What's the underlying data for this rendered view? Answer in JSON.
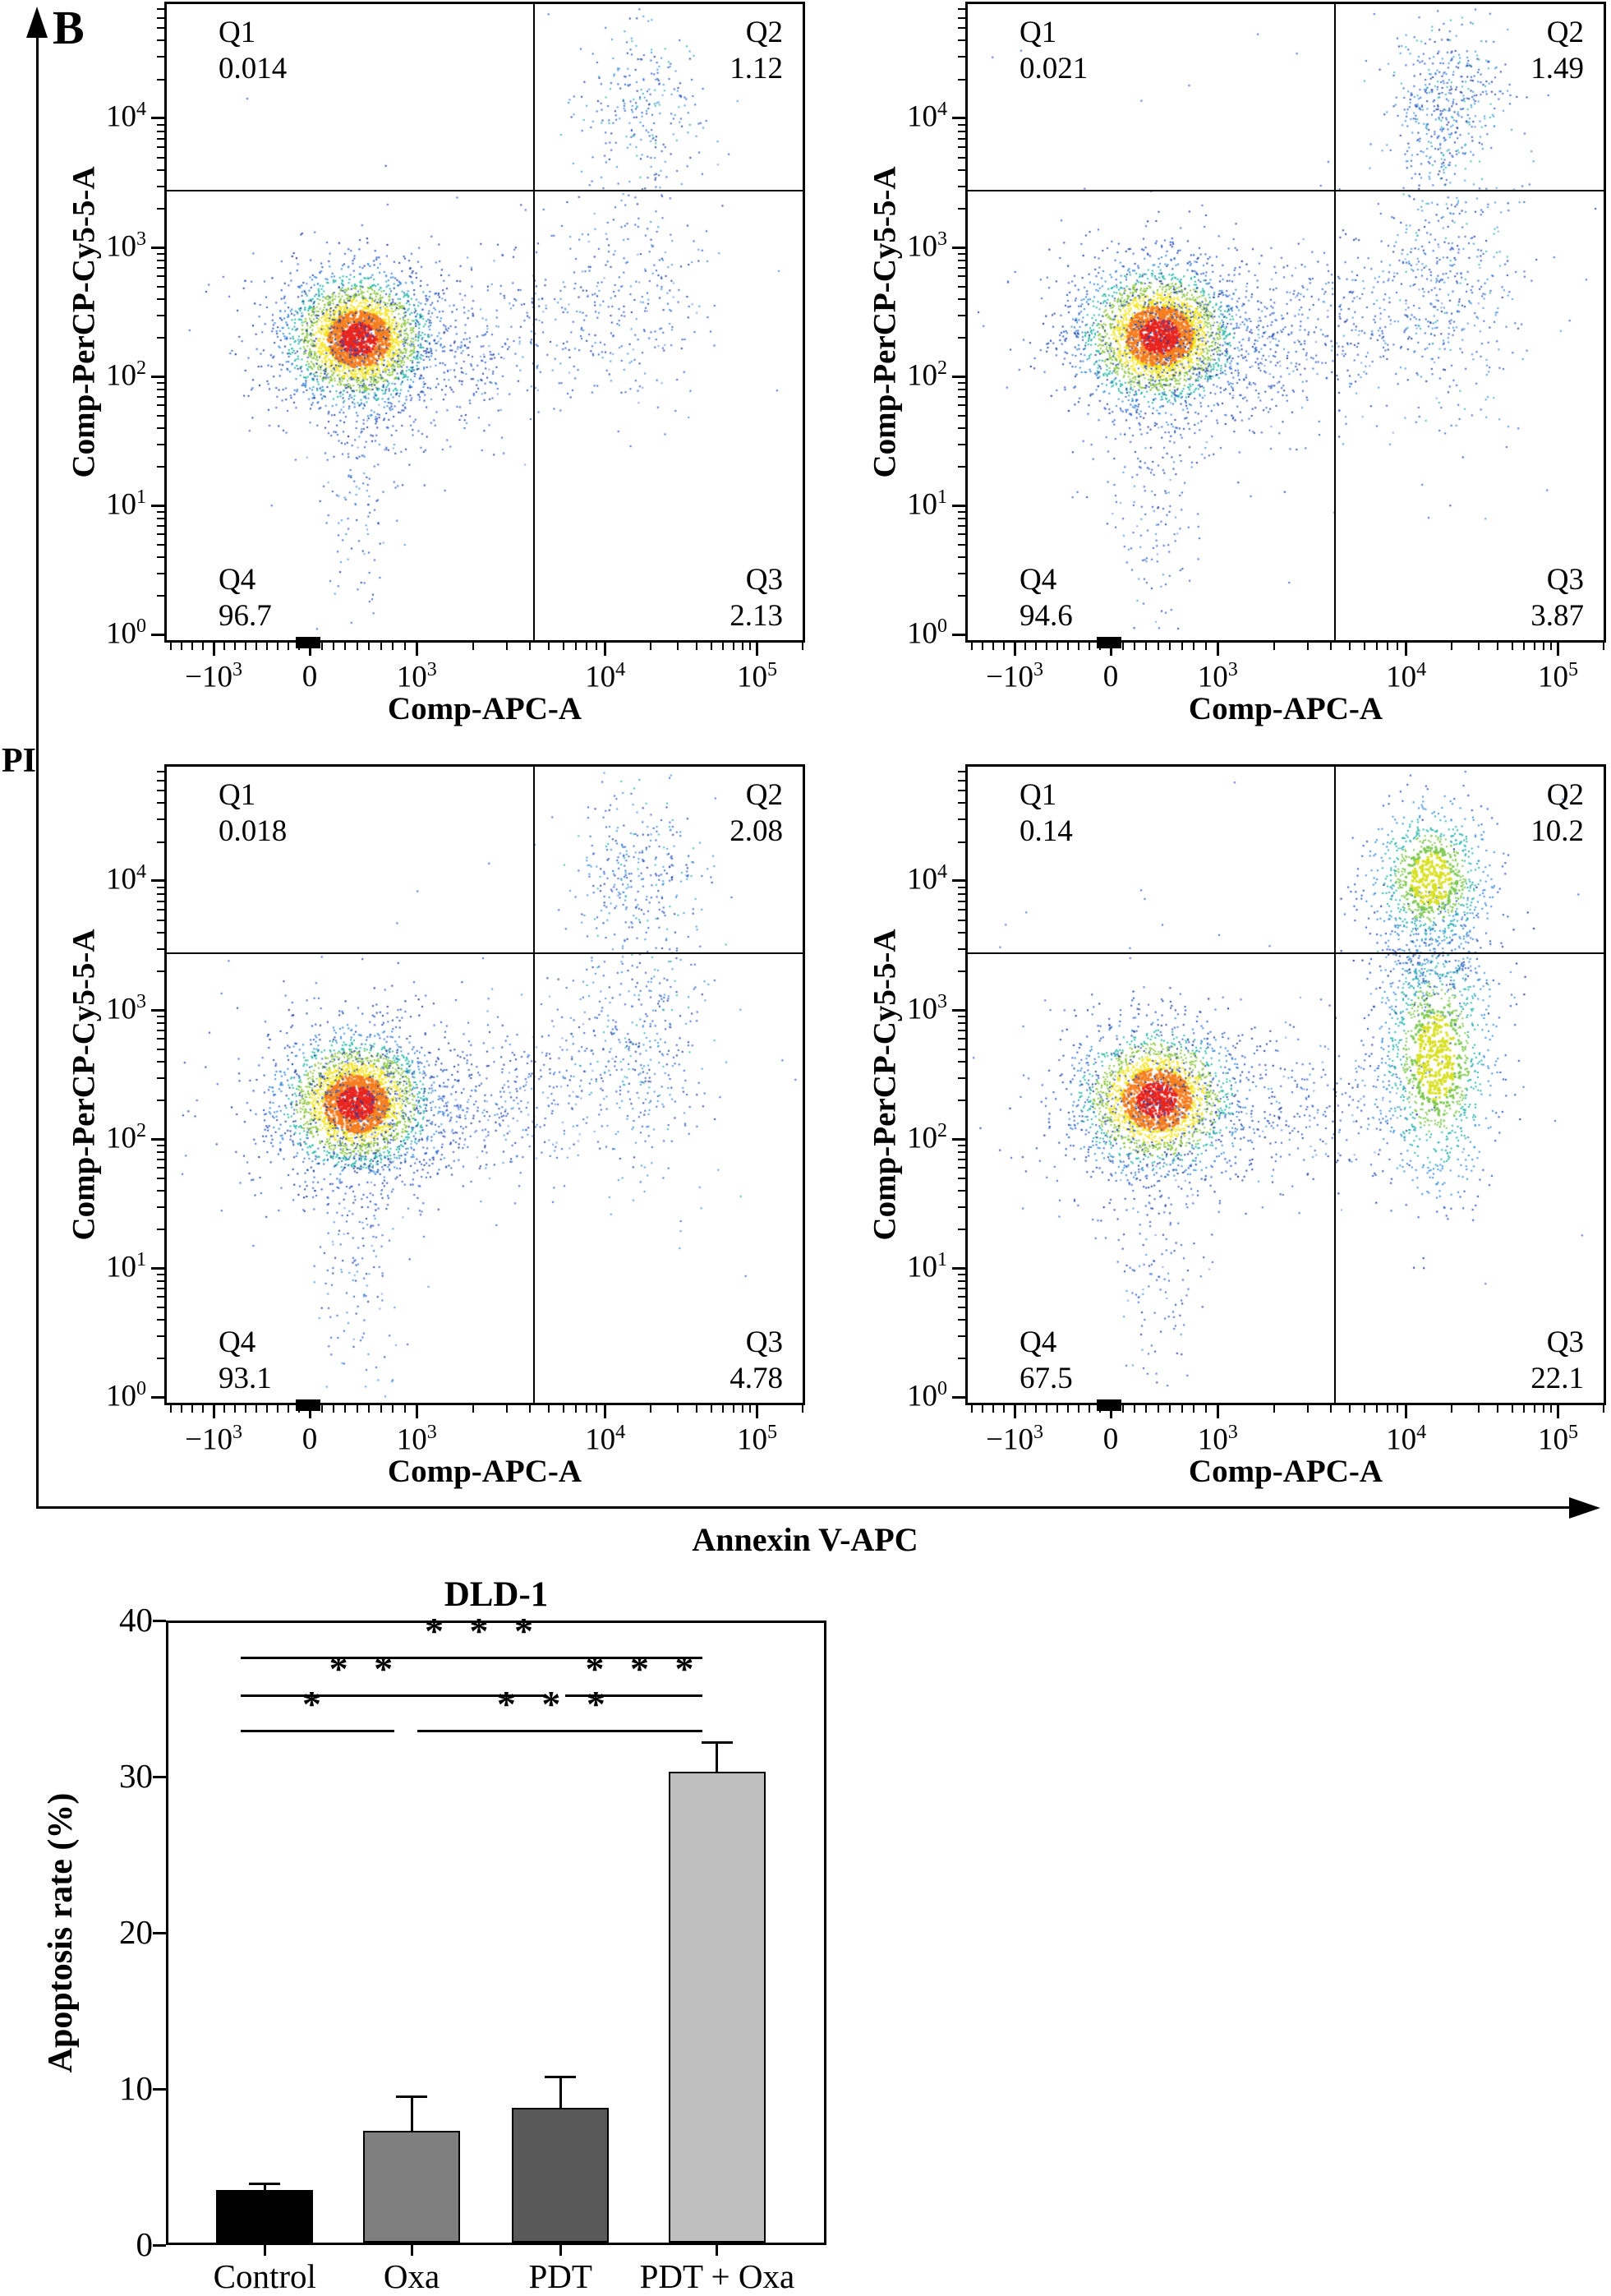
{
  "figure": {
    "label": "B",
    "pi_label": "PI",
    "annexin_label": "Annexin V-APC"
  },
  "flow_axes": {
    "x_label": "Comp-APC-A",
    "y_label": "Comp-PerCP-Cy5-5-A",
    "x_ticks": [
      "-10^3",
      "0",
      "10^3",
      "10^4",
      "10^5"
    ],
    "y_ticks": [
      "10^0",
      "10^1",
      "10^2",
      "10^3",
      "10^4"
    ]
  },
  "chart_data": [
    {
      "type": "scatter",
      "id": "flow-top-left",
      "xlabel": "Comp-APC-A",
      "ylabel": "Comp-PerCP-Cy5-5-A",
      "x_ticks": [
        "-10^3",
        "0",
        "10^3",
        "10^4",
        "10^5"
      ],
      "y_ticks": [
        "10^0",
        "10^1",
        "10^2",
        "10^3",
        "10^4"
      ],
      "quadrants": {
        "Q1": "0.014",
        "Q2": "1.12",
        "Q3": "2.13",
        "Q4": "96.7"
      },
      "clusters": [
        {
          "u": 0.3,
          "v": 0.525,
          "su": 0.052,
          "sv": 0.047,
          "n": 2600,
          "t": "density"
        },
        {
          "u": 0.305,
          "v": 0.535,
          "su": 0.092,
          "sv": 0.082,
          "n": 650,
          "t": "halo"
        },
        {
          "u": 0.3,
          "v": 0.765,
          "su": 0.034,
          "sv": 0.11,
          "n": 130,
          "t": "sparse"
        },
        {
          "u": 0.455,
          "v": 0.535,
          "su": 0.075,
          "sv": 0.052,
          "n": 230,
          "t": "sparse",
          "corr": -0.15
        },
        {
          "u": 0.645,
          "v": 0.495,
          "su": 0.105,
          "sv": 0.075,
          "n": 240,
          "t": "sparse",
          "corr": -0.25
        },
        {
          "u": 0.745,
          "v": 0.415,
          "su": 0.05,
          "sv": 0.12,
          "n": 170,
          "t": "sparse"
        },
        {
          "u": 0.745,
          "v": 0.155,
          "su": 0.05,
          "sv": 0.062,
          "n": 240,
          "t": "sparse2"
        },
        {
          "u": 0.48,
          "v": 0.33,
          "su": 0.28,
          "sv": 0.24,
          "n": 26,
          "t": "stray"
        }
      ]
    },
    {
      "type": "scatter",
      "id": "flow-top-right",
      "xlabel": "Comp-APC-A",
      "ylabel": "Comp-PerCP-Cy5-5-A",
      "x_ticks": [
        "-10^3",
        "0",
        "10^3",
        "10^4",
        "10^5"
      ],
      "y_ticks": [
        "10^0",
        "10^1",
        "10^2",
        "10^3",
        "10^4"
      ],
      "quadrants": {
        "Q1": "0.021",
        "Q2": "1.49",
        "Q3": "3.87",
        "Q4": "94.6"
      },
      "clusters": [
        {
          "u": 0.3,
          "v": 0.52,
          "su": 0.056,
          "sv": 0.05,
          "n": 2700,
          "t": "density"
        },
        {
          "u": 0.308,
          "v": 0.532,
          "su": 0.096,
          "sv": 0.086,
          "n": 720,
          "t": "halo"
        },
        {
          "u": 0.3,
          "v": 0.765,
          "su": 0.036,
          "sv": 0.115,
          "n": 170,
          "t": "sparse"
        },
        {
          "u": 0.47,
          "v": 0.535,
          "su": 0.08,
          "sv": 0.055,
          "n": 260,
          "t": "sparse",
          "corr": -0.15
        },
        {
          "u": 0.65,
          "v": 0.49,
          "su": 0.11,
          "sv": 0.08,
          "n": 420,
          "t": "sparse",
          "corr": -0.3
        },
        {
          "u": 0.755,
          "v": 0.4,
          "su": 0.048,
          "sv": 0.12,
          "n": 330,
          "t": "sparse2"
        },
        {
          "u": 0.75,
          "v": 0.15,
          "su": 0.048,
          "sv": 0.06,
          "n": 430,
          "t": "sparse2"
        },
        {
          "u": 0.48,
          "v": 0.33,
          "su": 0.28,
          "sv": 0.24,
          "n": 30,
          "t": "stray"
        }
      ]
    },
    {
      "type": "scatter",
      "id": "flow-bottom-left",
      "xlabel": "Comp-APC-A",
      "ylabel": "Comp-PerCP-Cy5-5-A",
      "x_ticks": [
        "-10^3",
        "0",
        "10^3",
        "10^4",
        "10^5"
      ],
      "y_ticks": [
        "10^0",
        "10^1",
        "10^2",
        "10^3",
        "10^4"
      ],
      "quadrants": {
        "Q1": "0.018",
        "Q2": "2.08",
        "Q3": "4.78",
        "Q4": "93.1"
      },
      "clusters": [
        {
          "u": 0.296,
          "v": 0.528,
          "su": 0.054,
          "sv": 0.048,
          "n": 2550,
          "t": "density"
        },
        {
          "u": 0.302,
          "v": 0.54,
          "su": 0.094,
          "sv": 0.084,
          "n": 700,
          "t": "halo"
        },
        {
          "u": 0.296,
          "v": 0.768,
          "su": 0.035,
          "sv": 0.115,
          "n": 160,
          "t": "sparse"
        },
        {
          "u": 0.46,
          "v": 0.54,
          "su": 0.078,
          "sv": 0.054,
          "n": 240,
          "t": "sparse",
          "corr": -0.15
        },
        {
          "u": 0.64,
          "v": 0.49,
          "su": 0.11,
          "sv": 0.08,
          "n": 330,
          "t": "sparse",
          "corr": -0.3
        },
        {
          "u": 0.752,
          "v": 0.42,
          "su": 0.05,
          "sv": 0.115,
          "n": 300,
          "t": "sparse2"
        },
        {
          "u": 0.74,
          "v": 0.165,
          "su": 0.052,
          "sv": 0.065,
          "n": 300,
          "t": "sparse2"
        },
        {
          "u": 0.48,
          "v": 0.33,
          "su": 0.28,
          "sv": 0.24,
          "n": 28,
          "t": "stray"
        }
      ]
    },
    {
      "type": "scatter",
      "id": "flow-bottom-right",
      "xlabel": "Comp-APC-A",
      "ylabel": "Comp-PerCP-Cy5-5-A",
      "x_ticks": [
        "-10^3",
        "0",
        "10^3",
        "10^4",
        "10^5"
      ],
      "y_ticks": [
        "10^0",
        "10^1",
        "10^2",
        "10^3",
        "10^4"
      ],
      "quadrants": {
        "Q1": "0.14",
        "Q2": "10.2",
        "Q3": "22.1",
        "Q4": "67.5"
      },
      "clusters": [
        {
          "u": 0.296,
          "v": 0.522,
          "su": 0.057,
          "sv": 0.051,
          "n": 2150,
          "t": "density"
        },
        {
          "u": 0.302,
          "v": 0.532,
          "su": 0.096,
          "sv": 0.086,
          "n": 600,
          "t": "halo"
        },
        {
          "u": 0.296,
          "v": 0.765,
          "su": 0.036,
          "sv": 0.115,
          "n": 150,
          "t": "sparse"
        },
        {
          "u": 0.56,
          "v": 0.535,
          "su": 0.1,
          "sv": 0.062,
          "n": 280,
          "t": "sparse",
          "corr": -0.1
        },
        {
          "u": 0.735,
          "v": 0.455,
          "su": 0.044,
          "sv": 0.1,
          "n": 1250,
          "t": "density2"
        },
        {
          "u": 0.727,
          "v": 0.175,
          "su": 0.046,
          "sv": 0.058,
          "n": 950,
          "t": "density2"
        },
        {
          "u": 0.73,
          "v": 0.3,
          "su": 0.042,
          "sv": 0.05,
          "n": 240,
          "t": "sparse2"
        },
        {
          "u": 0.5,
          "v": 0.32,
          "su": 0.3,
          "sv": 0.25,
          "n": 40,
          "t": "stray"
        }
      ]
    },
    {
      "type": "bar",
      "id": "apoptosis-bar-chart",
      "title": "DLD-1",
      "ylabel": "Apoptosis rate (%)",
      "xlabel": "",
      "ylim": [
        0,
        40
      ],
      "yticks": [
        0,
        10,
        20,
        30,
        40
      ],
      "categories": [
        "Control",
        "Oxa",
        "PDT",
        "PDT + Oxa"
      ],
      "values": [
        3.4,
        7.2,
        8.7,
        30.4
      ],
      "errors": [
        0.4,
        2.2,
        2.0,
        1.9
      ],
      "bar_colors": [
        "#000000",
        "#7f7f7f",
        "#595959",
        "#bfbfbf"
      ],
      "significance": [
        {
          "label": "*",
          "x1": 0.11,
          "x2": 0.345,
          "y": 33.1,
          "star_x": 0.225
        },
        {
          "label": "***",
          "x1": 0.38,
          "x2": 0.815,
          "y": 33.1,
          "star_x": 0.59
        },
        {
          "label": "**",
          "x1": 0.11,
          "x2": 0.577,
          "y": 35.4,
          "star_x": 0.3
        },
        {
          "label": "***",
          "x1": 0.605,
          "x2": 0.815,
          "y": 35.4,
          "star_x": 0.725
        },
        {
          "label": "***",
          "x1": 0.11,
          "x2": 0.815,
          "y": 37.8,
          "star_x": 0.48
        }
      ]
    }
  ]
}
